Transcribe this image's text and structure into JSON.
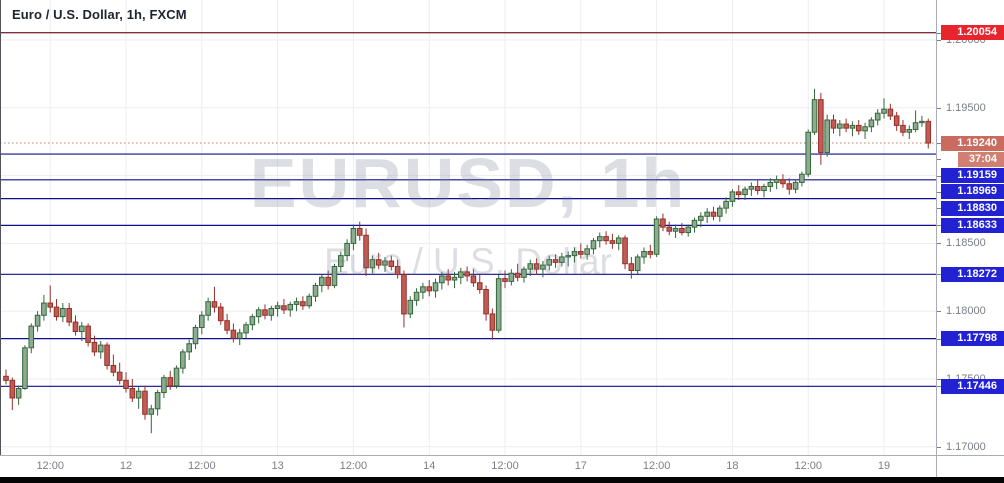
{
  "chart": {
    "title": "Euro / U.S. Dollar, 1h, FXCM",
    "watermark_line1": "EURUSD, 1h",
    "watermark_line2": "Euro / U.S. Dollar"
  },
  "colors": {
    "background": "#ffffff",
    "grid": "#ededf1",
    "axis_text": "#7b7e87",
    "title_text": "#20242e",
    "watermark": "rgba(115,125,145,0.25)",
    "up_fill": "#8cac90",
    "up_border": "#33663b",
    "down_fill": "#c15b53",
    "down_border": "#953029",
    "blue_level_line": "#0e0e8e",
    "blue_level_label_bg": "#2222d4",
    "alert_line": "#7e303c",
    "alert_label_bg": "#e8242d",
    "last_price_line": "#b5846f",
    "last_price_label_bg": "#c96b5f",
    "countdown_label_bg": "#d07f72",
    "separator": "#a9adb8",
    "left_border": "#50535a",
    "bottom_bar": "#050505"
  },
  "chart_data": {
    "type": "candlestick",
    "symbol": "EURUSD",
    "interval": "1h",
    "provider": "FXCM",
    "title": "Euro / U.S. Dollar, 1h, FXCM",
    "y_axis": {
      "min": 1.1693,
      "max": 1.2022,
      "tick_step": 0.005,
      "ticks": [
        1.2,
        1.195,
        1.19,
        1.185,
        1.18,
        1.175,
        1.17
      ]
    },
    "x_axis": {
      "labels": [
        "12:00",
        "12",
        "12:00",
        "13",
        "12:00",
        "14",
        "12:00",
        "17",
        "12:00",
        "18",
        "12:00",
        "19"
      ],
      "bars_per_label": 12,
      "first_label_bar_index": 7
    },
    "levels": {
      "alert_line": 1.20054,
      "last_price": 1.1924,
      "bar_close_countdown": "37:04",
      "blue_lines": [
        1.19159,
        1.18969,
        1.1883,
        1.18633,
        1.18272,
        1.17798,
        1.17446
      ]
    },
    "ohlc": [
      [
        1.1752,
        1.1757,
        1.1746,
        1.1749
      ],
      [
        1.1749,
        1.1751,
        1.1727,
        1.1736
      ],
      [
        1.1736,
        1.1745,
        1.1731,
        1.1743
      ],
      [
        1.1743,
        1.1775,
        1.1742,
        1.1773
      ],
      [
        1.1773,
        1.1791,
        1.1769,
        1.1789
      ],
      [
        1.1789,
        1.18,
        1.1785,
        1.1797
      ],
      [
        1.1797,
        1.1812,
        1.1793,
        1.1806
      ],
      [
        1.1806,
        1.1819,
        1.1799,
        1.1803
      ],
      [
        1.1803,
        1.1809,
        1.1793,
        1.1796
      ],
      [
        1.1796,
        1.1806,
        1.1792,
        1.1802
      ],
      [
        1.1802,
        1.1806,
        1.1789,
        1.1792
      ],
      [
        1.1792,
        1.1797,
        1.1782,
        1.1785
      ],
      [
        1.1785,
        1.1792,
        1.1778,
        1.1789
      ],
      [
        1.1789,
        1.1791,
        1.1774,
        1.1777
      ],
      [
        1.1777,
        1.1782,
        1.1767,
        1.177
      ],
      [
        1.177,
        1.1778,
        1.1765,
        1.1775
      ],
      [
        1.1775,
        1.1777,
        1.1757,
        1.176
      ],
      [
        1.176,
        1.1768,
        1.1752,
        1.1755
      ],
      [
        1.1755,
        1.1762,
        1.1746,
        1.1749
      ],
      [
        1.1749,
        1.1755,
        1.174,
        1.1743
      ],
      [
        1.1743,
        1.175,
        1.1733,
        1.1736
      ],
      [
        1.1736,
        1.1744,
        1.1728,
        1.1741
      ],
      [
        1.1741,
        1.1745,
        1.172,
        1.1724
      ],
      [
        1.1724,
        1.1731,
        1.171,
        1.1728
      ],
      [
        1.1728,
        1.1742,
        1.1723,
        1.174
      ],
      [
        1.174,
        1.1753,
        1.1736,
        1.1751
      ],
      [
        1.1751,
        1.1756,
        1.1742,
        1.1745
      ],
      [
        1.1745,
        1.176,
        1.1743,
        1.1758
      ],
      [
        1.1758,
        1.1772,
        1.1754,
        1.177
      ],
      [
        1.177,
        1.1779,
        1.1764,
        1.1776
      ],
      [
        1.1776,
        1.179,
        1.1772,
        1.1788
      ],
      [
        1.1788,
        1.18,
        1.1783,
        1.1797
      ],
      [
        1.1797,
        1.181,
        1.1793,
        1.1807
      ],
      [
        1.1807,
        1.1818,
        1.1799,
        1.1803
      ],
      [
        1.1803,
        1.1806,
        1.179,
        1.1793
      ],
      [
        1.1793,
        1.1798,
        1.1783,
        1.1786
      ],
      [
        1.1786,
        1.1791,
        1.1777,
        1.178
      ],
      [
        1.178,
        1.1787,
        1.1775,
        1.1784
      ],
      [
        1.1784,
        1.1792,
        1.178,
        1.179
      ],
      [
        1.179,
        1.1798,
        1.1786,
        1.1796
      ],
      [
        1.1796,
        1.1803,
        1.1791,
        1.1801
      ],
      [
        1.1801,
        1.1805,
        1.1794,
        1.1797
      ],
      [
        1.1797,
        1.1804,
        1.1793,
        1.1802
      ],
      [
        1.1802,
        1.1807,
        1.1796,
        1.1804
      ],
      [
        1.1804,
        1.1809,
        1.1798,
        1.1801
      ],
      [
        1.1801,
        1.1807,
        1.1796,
        1.1805
      ],
      [
        1.1805,
        1.181,
        1.18,
        1.1807
      ],
      [
        1.1807,
        1.1811,
        1.1801,
        1.1804
      ],
      [
        1.1804,
        1.1813,
        1.1802,
        1.1811
      ],
      [
        1.1811,
        1.1821,
        1.1807,
        1.1819
      ],
      [
        1.1819,
        1.1827,
        1.1814,
        1.1825
      ],
      [
        1.1825,
        1.183,
        1.1816,
        1.1819
      ],
      [
        1.1819,
        1.1835,
        1.1817,
        1.1833
      ],
      [
        1.1833,
        1.1844,
        1.1829,
        1.1841
      ],
      [
        1.1841,
        1.1853,
        1.1837,
        1.185
      ],
      [
        1.185,
        1.1864,
        1.1845,
        1.1861
      ],
      [
        1.1861,
        1.1866,
        1.1852,
        1.1856
      ],
      [
        1.1856,
        1.1861,
        1.1826,
        1.1832
      ],
      [
        1.1832,
        1.1841,
        1.1828,
        1.1838
      ],
      [
        1.1838,
        1.1843,
        1.1831,
        1.1834
      ],
      [
        1.1834,
        1.184,
        1.1829,
        1.1837
      ],
      [
        1.1837,
        1.1841,
        1.183,
        1.1833
      ],
      [
        1.1833,
        1.1838,
        1.1824,
        1.1827
      ],
      [
        1.1827,
        1.183,
        1.1788,
        1.1798
      ],
      [
        1.1798,
        1.1811,
        1.1795,
        1.1808
      ],
      [
        1.1808,
        1.1817,
        1.1804,
        1.1814
      ],
      [
        1.1814,
        1.1821,
        1.1809,
        1.1818
      ],
      [
        1.1818,
        1.1823,
        1.1811,
        1.1815
      ],
      [
        1.1815,
        1.1824,
        1.181,
        1.1821
      ],
      [
        1.1821,
        1.1829,
        1.1816,
        1.1826
      ],
      [
        1.1826,
        1.1831,
        1.1819,
        1.1823
      ],
      [
        1.1823,
        1.1829,
        1.1817,
        1.1825
      ],
      [
        1.1825,
        1.1832,
        1.182,
        1.1829
      ],
      [
        1.1829,
        1.1833,
        1.1822,
        1.1826
      ],
      [
        1.1826,
        1.1831,
        1.1818,
        1.1821
      ],
      [
        1.1821,
        1.1827,
        1.1813,
        1.1816
      ],
      [
        1.1816,
        1.1819,
        1.1793,
        1.1798
      ],
      [
        1.1798,
        1.1802,
        1.1779,
        1.1786
      ],
      [
        1.1786,
        1.1827,
        1.1784,
        1.1824
      ],
      [
        1.1824,
        1.183,
        1.1817,
        1.1822
      ],
      [
        1.1822,
        1.1831,
        1.1819,
        1.1828
      ],
      [
        1.1828,
        1.1835,
        1.1822,
        1.1825
      ],
      [
        1.1825,
        1.1833,
        1.1821,
        1.1831
      ],
      [
        1.1831,
        1.1838,
        1.1826,
        1.1835
      ],
      [
        1.1835,
        1.1839,
        1.1827,
        1.1831
      ],
      [
        1.1831,
        1.1837,
        1.1825,
        1.1834
      ],
      [
        1.1834,
        1.1841,
        1.183,
        1.1838
      ],
      [
        1.1838,
        1.1842,
        1.1832,
        1.1836
      ],
      [
        1.1836,
        1.1843,
        1.1833,
        1.184
      ],
      [
        1.184,
        1.1844,
        1.1833,
        1.1841
      ],
      [
        1.1841,
        1.1847,
        1.1836,
        1.1844
      ],
      [
        1.1844,
        1.185,
        1.1839,
        1.1842
      ],
      [
        1.1842,
        1.1849,
        1.1838,
        1.1846
      ],
      [
        1.1846,
        1.1854,
        1.1842,
        1.1852
      ],
      [
        1.1852,
        1.1858,
        1.1847,
        1.1855
      ],
      [
        1.1855,
        1.1859,
        1.1849,
        1.1852
      ],
      [
        1.1852,
        1.1857,
        1.1846,
        1.185
      ],
      [
        1.185,
        1.1856,
        1.1845,
        1.1854
      ],
      [
        1.1854,
        1.1856,
        1.1831,
        1.1835
      ],
      [
        1.1835,
        1.184,
        1.1824,
        1.183
      ],
      [
        1.183,
        1.1842,
        1.1827,
        1.184
      ],
      [
        1.184,
        1.1847,
        1.1835,
        1.1844
      ],
      [
        1.1844,
        1.1849,
        1.1839,
        1.1842
      ],
      [
        1.1842,
        1.187,
        1.184,
        1.1868
      ],
      [
        1.1868,
        1.1872,
        1.1859,
        1.1862
      ],
      [
        1.1862,
        1.1866,
        1.1856,
        1.1859
      ],
      [
        1.1859,
        1.1864,
        1.1854,
        1.1861
      ],
      [
        1.1861,
        1.1865,
        1.1856,
        1.1858
      ],
      [
        1.1858,
        1.1864,
        1.1855,
        1.1862
      ],
      [
        1.1862,
        1.1869,
        1.1858,
        1.1867
      ],
      [
        1.1867,
        1.1873,
        1.1862,
        1.187
      ],
      [
        1.187,
        1.1876,
        1.1865,
        1.1873
      ],
      [
        1.1873,
        1.1877,
        1.1867,
        1.187
      ],
      [
        1.187,
        1.1878,
        1.1866,
        1.1876
      ],
      [
        1.1876,
        1.1884,
        1.1872,
        1.1881
      ],
      [
        1.1881,
        1.189,
        1.1877,
        1.1888
      ],
      [
        1.1888,
        1.1893,
        1.1882,
        1.1886
      ],
      [
        1.1886,
        1.1892,
        1.1882,
        1.189
      ],
      [
        1.189,
        1.1895,
        1.1885,
        1.1892
      ],
      [
        1.1892,
        1.1897,
        1.1886,
        1.1889
      ],
      [
        1.1889,
        1.1894,
        1.1884,
        1.1892
      ],
      [
        1.1892,
        1.1898,
        1.1888,
        1.1895
      ],
      [
        1.1895,
        1.19,
        1.189,
        1.1897
      ],
      [
        1.1897,
        1.1901,
        1.1891,
        1.1894
      ],
      [
        1.1894,
        1.1898,
        1.1886,
        1.189
      ],
      [
        1.189,
        1.1897,
        1.1887,
        1.1895
      ],
      [
        1.1895,
        1.1903,
        1.1892,
        1.1901
      ],
      [
        1.1901,
        1.1934,
        1.1899,
        1.1932
      ],
      [
        1.1932,
        1.1964,
        1.193,
        1.1956
      ],
      [
        1.1956,
        1.1961,
        1.1908,
        1.1917
      ],
      [
        1.1917,
        1.1945,
        1.1914,
        1.1941
      ],
      [
        1.1941,
        1.1945,
        1.1931,
        1.1935
      ],
      [
        1.1935,
        1.1941,
        1.1929,
        1.1938
      ],
      [
        1.1938,
        1.1942,
        1.1932,
        1.1935
      ],
      [
        1.1935,
        1.194,
        1.1929,
        1.1937
      ],
      [
        1.1937,
        1.1941,
        1.193,
        1.1933
      ],
      [
        1.1933,
        1.1939,
        1.1927,
        1.1936
      ],
      [
        1.1936,
        1.1943,
        1.1932,
        1.1941
      ],
      [
        1.1941,
        1.1949,
        1.1937,
        1.1946
      ],
      [
        1.1946,
        1.1957,
        1.1942,
        1.1949
      ],
      [
        1.1949,
        1.1953,
        1.1941,
        1.1944
      ],
      [
        1.1944,
        1.1947,
        1.1933,
        1.1937
      ],
      [
        1.1937,
        1.1941,
        1.1929,
        1.1932
      ],
      [
        1.1932,
        1.1937,
        1.1927,
        1.1934
      ],
      [
        1.1934,
        1.1948,
        1.1932,
        1.1939
      ],
      [
        1.1939,
        1.1944,
        1.1936,
        1.194
      ],
      [
        1.194,
        1.1942,
        1.192,
        1.1924
      ]
    ]
  }
}
